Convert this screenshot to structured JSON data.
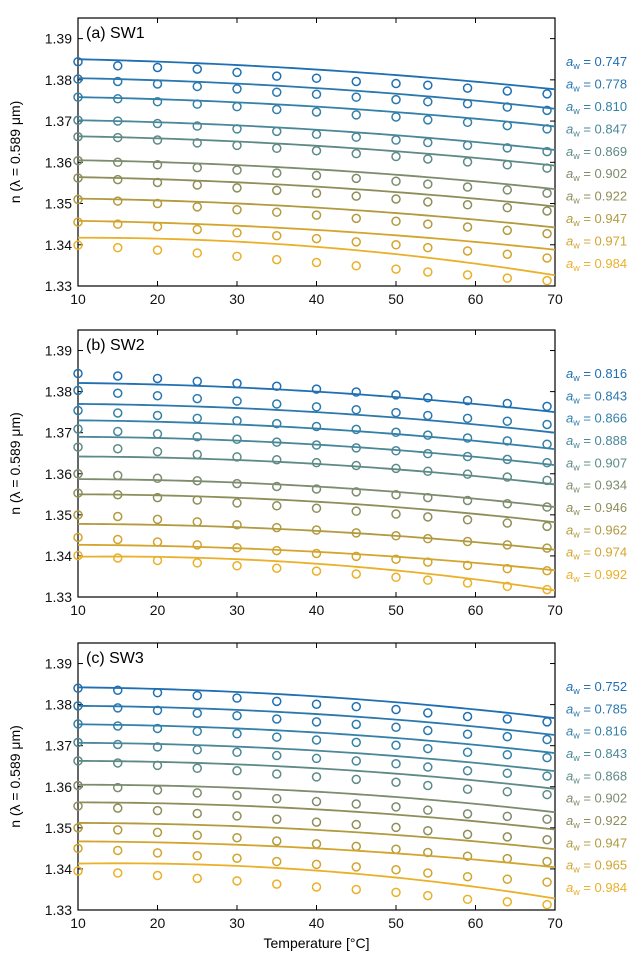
{
  "chart_data": [
    {
      "type": "scatter",
      "title": "(a) SW1",
      "xlabel": "",
      "ylabel": "n (λ = 0.589 μm)",
      "xlim": [
        10,
        70
      ],
      "ylim": [
        1.33,
        1.395
      ],
      "xticks": [
        "10",
        "20",
        "30",
        "40",
        "50",
        "60",
        "70"
      ],
      "yticks": [
        "1.33",
        "1.34",
        "1.35",
        "1.36",
        "1.37",
        "1.38",
        "1.39"
      ],
      "legend_position": "right",
      "marker_x": [
        10,
        15,
        20,
        25,
        30,
        35,
        40,
        45,
        50,
        54,
        59,
        64,
        69
      ],
      "series": [
        {
          "name": "aw = 0.747",
          "color": "#1f6fb2",
          "points": [
            1.3844,
            1.3834,
            1.383,
            1.3826,
            1.3818,
            1.3809,
            1.3804,
            1.3796,
            1.3791,
            1.3787,
            1.378,
            1.3773,
            1.3766
          ],
          "fit": [
            1.385,
            1.3825,
            1.3777
          ]
        },
        {
          "name": "aw = 0.778",
          "color": "#2a78ae",
          "points": [
            1.3802,
            1.3796,
            1.379,
            1.3784,
            1.3778,
            1.377,
            1.3765,
            1.3758,
            1.3752,
            1.3747,
            1.3742,
            1.3734,
            1.3726
          ],
          "fit": [
            1.3804,
            1.378,
            1.373
          ]
        },
        {
          "name": "aw = 0.810",
          "color": "#3380a8",
          "points": [
            1.3758,
            1.3754,
            1.3747,
            1.3741,
            1.3735,
            1.3728,
            1.3722,
            1.3715,
            1.371,
            1.3703,
            1.3697,
            1.3689,
            1.3681
          ],
          "fit": [
            1.3758,
            1.3735,
            1.3687
          ]
        },
        {
          "name": "aw = 0.847",
          "color": "#4a8799",
          "points": [
            1.3702,
            1.37,
            1.3694,
            1.3688,
            1.3681,
            1.3675,
            1.3668,
            1.3661,
            1.3654,
            1.3648,
            1.3641,
            1.3635,
            1.3626
          ],
          "fit": [
            1.3702,
            1.3679,
            1.363
          ]
        },
        {
          "name": "aw = 0.869",
          "color": "#5e8a86",
          "points": [
            1.3662,
            1.366,
            1.3654,
            1.3647,
            1.3641,
            1.3634,
            1.3628,
            1.3621,
            1.3614,
            1.3608,
            1.3601,
            1.3594,
            1.3586
          ],
          "fit": [
            1.3663,
            1.364,
            1.3592
          ]
        },
        {
          "name": "aw = 0.902",
          "color": "#7c8c6d",
          "points": [
            1.3604,
            1.36,
            1.3594,
            1.3587,
            1.3581,
            1.3574,
            1.3568,
            1.3561,
            1.3554,
            1.3547,
            1.354,
            1.3533,
            1.3525
          ],
          "fit": [
            1.3605,
            1.3583,
            1.3535
          ]
        },
        {
          "name": "aw = 0.922",
          "color": "#8e8e5a",
          "points": [
            1.3562,
            1.3558,
            1.3551,
            1.3545,
            1.3538,
            1.3532,
            1.3525,
            1.3518,
            1.3511,
            1.3504,
            1.3497,
            1.349,
            1.3482
          ],
          "fit": [
            1.3564,
            1.3541,
            1.3493
          ]
        },
        {
          "name": "aw = 0.947",
          "color": "#b29a3f",
          "points": [
            1.351,
            1.3506,
            1.35,
            1.3492,
            1.3485,
            1.3479,
            1.3472,
            1.3464,
            1.3457,
            1.345,
            1.3443,
            1.3435,
            1.3427
          ],
          "fit": [
            1.3512,
            1.349,
            1.3442
          ]
        },
        {
          "name": "aw = 0.971",
          "color": "#d3a52e",
          "points": [
            1.3455,
            1.345,
            1.3444,
            1.3437,
            1.3429,
            1.3422,
            1.3415,
            1.3407,
            1.34,
            1.3393,
            1.3385,
            1.3377,
            1.3368
          ],
          "fit": [
            1.3458,
            1.3436,
            1.3388
          ]
        },
        {
          "name": "aw = 0.984",
          "color": "#eab029",
          "points": [
            1.3399,
            1.3393,
            1.3387,
            1.338,
            1.3372,
            1.3364,
            1.3357,
            1.3349,
            1.3341,
            1.3334,
            1.3327,
            1.3319,
            1.3313
          ],
          "fit": [
            1.3417,
            1.3395,
            1.3326
          ]
        }
      ]
    },
    {
      "type": "scatter",
      "title": "(b) SW2",
      "xlabel": "",
      "ylabel": "n (λ = 0.589 μm)",
      "xlim": [
        10,
        70
      ],
      "ylim": [
        1.33,
        1.395
      ],
      "xticks": [
        "10",
        "20",
        "30",
        "40",
        "50",
        "60",
        "70"
      ],
      "yticks": [
        "1.33",
        "1.34",
        "1.35",
        "1.36",
        "1.37",
        "1.38",
        "1.39"
      ],
      "legend_position": "right",
      "marker_x": [
        10,
        15,
        20,
        25,
        30,
        35,
        40,
        45,
        50,
        54,
        59,
        64,
        69
      ],
      "series": [
        {
          "name": "aw = 0.816",
          "color": "#1f6fb2",
          "points": [
            1.3844,
            1.3838,
            1.3832,
            1.3825,
            1.382,
            1.3813,
            1.3806,
            1.3799,
            1.3792,
            1.3785,
            1.3778,
            1.3771,
            1.3764
          ],
          "fit": [
            1.3821,
            1.38,
            1.375
          ]
        },
        {
          "name": "aw = 0.843",
          "color": "#2a78ae",
          "points": [
            1.3803,
            1.3796,
            1.379,
            1.3783,
            1.3777,
            1.377,
            1.3763,
            1.3756,
            1.3749,
            1.3742,
            1.3735,
            1.3728,
            1.372
          ],
          "fit": [
            1.377,
            1.375,
            1.37
          ]
        },
        {
          "name": "aw = 0.866",
          "color": "#3380a8",
          "points": [
            1.3754,
            1.3748,
            1.3742,
            1.3735,
            1.3729,
            1.3722,
            1.3715,
            1.3708,
            1.3701,
            1.3694,
            1.3687,
            1.368,
            1.3672
          ],
          "fit": [
            1.373,
            1.371,
            1.366
          ]
        },
        {
          "name": "aw = 0.888",
          "color": "#4a8799",
          "points": [
            1.3709,
            1.3703,
            1.3697,
            1.369,
            1.3684,
            1.3677,
            1.367,
            1.3663,
            1.3656,
            1.3649,
            1.3642,
            1.3635,
            1.3627
          ],
          "fit": [
            1.369,
            1.3671,
            1.3621
          ]
        },
        {
          "name": "aw = 0.907",
          "color": "#5e8a86",
          "points": [
            1.3665,
            1.3661,
            1.3654,
            1.3647,
            1.3641,
            1.3634,
            1.3627,
            1.362,
            1.3613,
            1.3606,
            1.3599,
            1.3592,
            1.3584
          ],
          "fit": [
            1.3642,
            1.3624,
            1.3574
          ]
        },
        {
          "name": "aw = 0.934",
          "color": "#7c8c6d",
          "points": [
            1.36,
            1.3596,
            1.3589,
            1.3583,
            1.3576,
            1.3569,
            1.3563,
            1.3556,
            1.3549,
            1.3542,
            1.3535,
            1.3527,
            1.3519
          ],
          "fit": [
            1.3587,
            1.3569,
            1.3519
          ]
        },
        {
          "name": "aw = 0.946",
          "color": "#8e8e5a",
          "points": [
            1.3553,
            1.3549,
            1.3542,
            1.3536,
            1.3529,
            1.3522,
            1.3516,
            1.3509,
            1.3502,
            1.3495,
            1.3488,
            1.348,
            1.3472
          ],
          "fit": [
            1.355,
            1.3532,
            1.3482
          ]
        },
        {
          "name": "aw = 0.962",
          "color": "#b29a3f",
          "points": [
            1.35,
            1.3496,
            1.3489,
            1.3483,
            1.3476,
            1.3469,
            1.3463,
            1.3456,
            1.3449,
            1.3442,
            1.3435,
            1.3427,
            1.3419
          ],
          "fit": [
            1.3478,
            1.3461,
            1.3415
          ]
        },
        {
          "name": "aw = 0.974",
          "color": "#d3a52e",
          "points": [
            1.3445,
            1.344,
            1.3434,
            1.3427,
            1.342,
            1.3413,
            1.3406,
            1.3399,
            1.3392,
            1.3385,
            1.3377,
            1.3369,
            1.3364
          ],
          "fit": [
            1.3427,
            1.341,
            1.3365
          ]
        },
        {
          "name": "aw = 0.992",
          "color": "#eab029",
          "points": [
            1.3401,
            1.3395,
            1.3389,
            1.3383,
            1.3376,
            1.337,
            1.3363,
            1.3356,
            1.3348,
            1.3341,
            1.3334,
            1.3326,
            1.3318
          ],
          "fit": [
            1.3398,
            1.3381,
            1.3316
          ]
        }
      ]
    },
    {
      "type": "scatter",
      "title": "(c) SW3",
      "xlabel": "Temperature [°C]",
      "ylabel": "n (λ = 0.589 μm)",
      "xlim": [
        10,
        70
      ],
      "ylim": [
        1.33,
        1.395
      ],
      "xticks": [
        "10",
        "20",
        "30",
        "40",
        "50",
        "60",
        "70"
      ],
      "yticks": [
        "1.33",
        "1.34",
        "1.35",
        "1.36",
        "1.37",
        "1.38",
        "1.39"
      ],
      "legend_position": "right",
      "marker_x": [
        10,
        15,
        20,
        25,
        30,
        35,
        40,
        45,
        50,
        54,
        59,
        64,
        69
      ],
      "series": [
        {
          "name": "aw = 0.752",
          "color": "#1f6fb2",
          "points": [
            1.384,
            1.3835,
            1.3829,
            1.3822,
            1.3816,
            1.3808,
            1.3801,
            1.3795,
            1.3788,
            1.378,
            1.3771,
            1.3765,
            1.3758
          ],
          "fit": [
            1.3842,
            1.382,
            1.3767
          ]
        },
        {
          "name": "aw = 0.785",
          "color": "#2a78ae",
          "points": [
            1.3797,
            1.3792,
            1.3786,
            1.3779,
            1.3773,
            1.3765,
            1.3758,
            1.3752,
            1.3745,
            1.3737,
            1.3728,
            1.3722,
            1.3715
          ],
          "fit": [
            1.3797,
            1.3777,
            1.3726
          ]
        },
        {
          "name": "aw = 0.816",
          "color": "#3380a8",
          "points": [
            1.3753,
            1.3748,
            1.3742,
            1.3735,
            1.3729,
            1.3721,
            1.3714,
            1.3708,
            1.3701,
            1.3693,
            1.3684,
            1.3678,
            1.3671
          ],
          "fit": [
            1.3752,
            1.3732,
            1.3682
          ]
        },
        {
          "name": "aw = 0.843",
          "color": "#4a8799",
          "points": [
            1.3708,
            1.3703,
            1.3697,
            1.369,
            1.3684,
            1.3676,
            1.3669,
            1.3663,
            1.3656,
            1.3648,
            1.3639,
            1.3633,
            1.3626
          ],
          "fit": [
            1.3707,
            1.3688,
            1.3638
          ]
        },
        {
          "name": "aw = 0.868",
          "color": "#5e8a86",
          "points": [
            1.3663,
            1.3658,
            1.3652,
            1.3645,
            1.3639,
            1.3631,
            1.3624,
            1.3618,
            1.3611,
            1.3603,
            1.3594,
            1.3588,
            1.3581
          ],
          "fit": [
            1.3663,
            1.3645,
            1.3595
          ]
        },
        {
          "name": "aw = 0.902",
          "color": "#7c8c6d",
          "points": [
            1.3603,
            1.3598,
            1.3592,
            1.3585,
            1.3579,
            1.3571,
            1.3564,
            1.3558,
            1.3551,
            1.3543,
            1.3534,
            1.3528,
            1.3521
          ],
          "fit": [
            1.3605,
            1.3588,
            1.3538
          ]
        },
        {
          "name": "aw = 0.922",
          "color": "#8e8e5a",
          "points": [
            1.3553,
            1.3548,
            1.3542,
            1.3535,
            1.3529,
            1.3521,
            1.3514,
            1.3508,
            1.3501,
            1.3493,
            1.3484,
            1.3478,
            1.3471
          ],
          "fit": [
            1.3562,
            1.3545,
            1.3496
          ]
        },
        {
          "name": "aw = 0.947",
          "color": "#b29a3f",
          "points": [
            1.35,
            1.3495,
            1.3489,
            1.3482,
            1.3476,
            1.3468,
            1.3461,
            1.3455,
            1.3448,
            1.344,
            1.3431,
            1.3425,
            1.3418
          ],
          "fit": [
            1.3512,
            1.3495,
            1.3448
          ]
        },
        {
          "name": "aw = 0.965",
          "color": "#d3a52e",
          "points": [
            1.345,
            1.3445,
            1.3439,
            1.3432,
            1.3426,
            1.3418,
            1.3411,
            1.3405,
            1.3398,
            1.339,
            1.3381,
            1.3375,
            1.3368
          ],
          "fit": [
            1.3467,
            1.345,
            1.3404
          ]
        },
        {
          "name": "aw = 0.984",
          "color": "#eab029",
          "points": [
            1.3395,
            1.339,
            1.3384,
            1.3377,
            1.3371,
            1.3363,
            1.3356,
            1.335,
            1.3343,
            1.3335,
            1.3326,
            1.332,
            1.3313
          ],
          "fit": [
            1.3413,
            1.3396,
            1.3328
          ]
        }
      ]
    }
  ]
}
